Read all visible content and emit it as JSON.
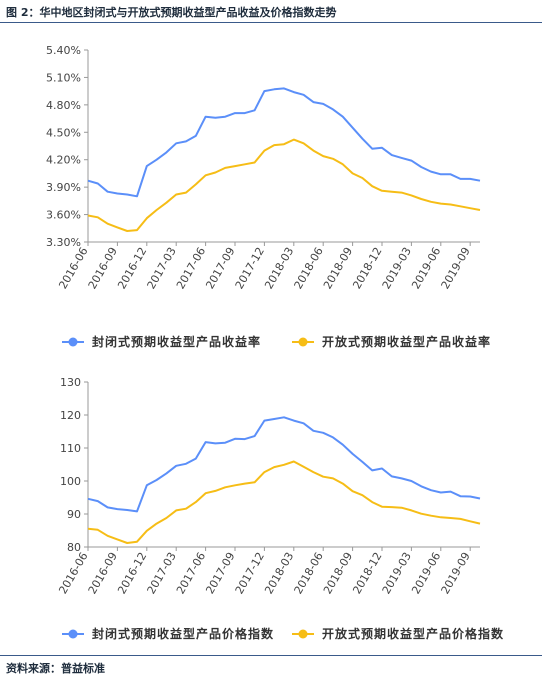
{
  "header": {
    "caption": "图 2：华中地区封闭式与开放式预期收益型产品收益及价格指数走势"
  },
  "footer": {
    "source": "资料来源：普益标准"
  },
  "colors": {
    "closed": "#5b8ff9",
    "open": "#f6bd16",
    "rule": "#3a5a8a"
  },
  "chart_data": [
    {
      "type": "line",
      "title": "",
      "xlabel": "",
      "ylabel": "",
      "ylim": [
        3.3,
        5.4
      ],
      "ytick_labels": [
        "5.40%",
        "5.10%",
        "4.80%",
        "4.50%",
        "4.20%",
        "3.90%",
        "3.60%",
        "3.30%"
      ],
      "xtick_labels": [
        "2016-06",
        "2016-09",
        "2016-12",
        "2017-03",
        "2017-06",
        "2017-09",
        "2017-12",
        "2018-03",
        "2018-06",
        "2018-09",
        "2018-12",
        "2019-03",
        "2019-06",
        "2019-09"
      ],
      "legend_position": "bottom",
      "series": [
        {
          "name": "封闭式预期收益型产品收益率",
          "values": [
            3.97,
            3.94,
            3.85,
            3.83,
            3.82,
            3.8,
            4.13,
            4.2,
            4.28,
            4.38,
            4.4,
            4.46,
            4.67,
            4.66,
            4.67,
            4.71,
            4.71,
            4.74,
            4.95,
            4.97,
            4.98,
            4.94,
            4.91,
            4.83,
            4.81,
            4.75,
            4.67,
            4.55,
            4.43,
            4.32,
            4.33,
            4.25,
            4.22,
            4.19,
            4.12,
            4.07,
            4.04,
            4.04,
            3.99,
            3.99,
            3.97
          ]
        },
        {
          "name": "开放式预期收益型产品收益率",
          "values": [
            3.59,
            3.57,
            3.5,
            3.46,
            3.42,
            3.43,
            3.56,
            3.65,
            3.73,
            3.82,
            3.84,
            3.93,
            4.03,
            4.06,
            4.11,
            4.13,
            4.15,
            4.17,
            4.3,
            4.36,
            4.37,
            4.42,
            4.38,
            4.3,
            4.24,
            4.21,
            4.15,
            4.05,
            4.0,
            3.91,
            3.86,
            3.85,
            3.84,
            3.81,
            3.77,
            3.74,
            3.72,
            3.71,
            3.69,
            3.67,
            3.65
          ]
        }
      ]
    },
    {
      "type": "line",
      "title": "",
      "xlabel": "",
      "ylabel": "",
      "ylim": [
        80,
        130
      ],
      "ytick_labels": [
        "130",
        "120",
        "110",
        "100",
        "90",
        "80"
      ],
      "xtick_labels": [
        "2016-06",
        "2016-09",
        "2016-12",
        "2017-03",
        "2017-06",
        "2017-09",
        "2017-12",
        "2018-03",
        "2018-06",
        "2018-09",
        "2018-12",
        "2019-03",
        "2019-06",
        "2019-09"
      ],
      "legend_position": "bottom",
      "series": [
        {
          "name": "封闭式预期收益型产品价格指数",
          "values": [
            94.6,
            93.9,
            92.0,
            91.5,
            91.2,
            90.8,
            98.7,
            100.3,
            102.3,
            104.6,
            105.2,
            106.8,
            111.8,
            111.4,
            111.6,
            112.8,
            112.7,
            113.6,
            118.3,
            118.8,
            119.3,
            118.3,
            117.5,
            115.2,
            114.6,
            113.2,
            111.0,
            108.2,
            105.8,
            103.2,
            103.8,
            101.4,
            100.8,
            100.0,
            98.4,
            97.2,
            96.5,
            96.8,
            95.4,
            95.3,
            94.7
          ]
        },
        {
          "name": "开放式预期收益型产品价格指数",
          "values": [
            85.5,
            85.2,
            83.4,
            82.3,
            81.2,
            81.6,
            84.9,
            87.1,
            88.8,
            91.1,
            91.6,
            93.6,
            96.3,
            97.0,
            98.1,
            98.7,
            99.2,
            99.6,
            102.7,
            104.2,
            104.9,
            105.9,
            104.3,
            102.7,
            101.3,
            100.8,
            99.2,
            96.9,
            95.7,
            93.6,
            92.2,
            92.1,
            91.9,
            91.1,
            90.1,
            89.5,
            89.0,
            88.8,
            88.5,
            87.8,
            87.1
          ]
        }
      ]
    }
  ]
}
